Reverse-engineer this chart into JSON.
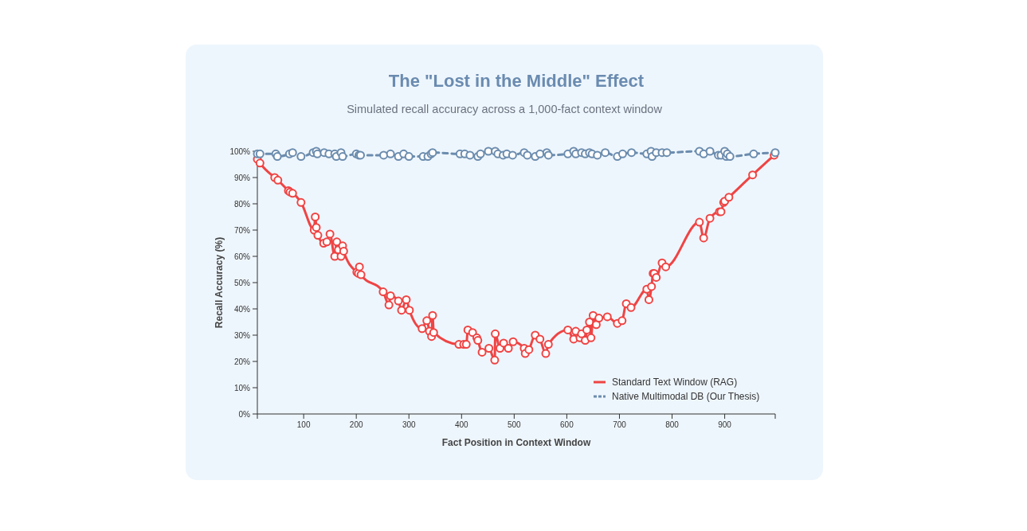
{
  "chart_data": {
    "type": "line",
    "title": "The \"Lost in the Middle\" Effect",
    "subtitle": "Simulated recall accuracy across a 1,000-fact context window",
    "xlabel": "Fact Position in Context Window",
    "ylabel": "Recall Accuracy (%)",
    "xlim": [
      12,
      996
    ],
    "xticks": [
      100,
      200,
      300,
      400,
      500,
      600,
      700,
      800,
      900
    ],
    "ylim": [
      0,
      100
    ],
    "yticks": [
      {
        "value": 0,
        "label": "0%"
      },
      {
        "value": 10,
        "label": "10%"
      },
      {
        "value": 20,
        "label": "20%"
      },
      {
        "value": 30,
        "label": "30%"
      },
      {
        "value": 40,
        "label": "40%"
      },
      {
        "value": 50,
        "label": "50%"
      },
      {
        "value": 60,
        "label": "60%"
      },
      {
        "value": 70,
        "label": "70%"
      },
      {
        "value": 80,
        "label": "80%"
      },
      {
        "value": 90,
        "label": "90%"
      },
      {
        "value": 100,
        "label": "100%"
      }
    ],
    "grid": false,
    "legend": "bottom right",
    "marker": "circle",
    "series": [
      {
        "name": "Standard Text Window (RAG)",
        "color": "#ef4444",
        "line_style": "solid",
        "x": [
          12,
          17,
          45,
          51,
          71,
          74,
          79,
          95,
          120,
          122,
          124,
          127,
          138,
          144,
          150,
          159,
          163,
          166,
          171,
          174,
          176,
          201,
          204,
          206,
          209,
          251,
          262,
          265,
          280,
          286,
          295,
          301,
          325,
          334,
          339,
          343,
          345,
          347,
          395,
          404,
          409,
          412,
          421,
          429,
          431,
          439,
          452,
          463,
          464,
          473,
          480,
          489,
          498,
          519,
          521,
          528,
          540,
          549,
          560,
          565,
          602,
          613,
          617,
          625,
          628,
          635,
          638,
          643,
          646,
          650,
          656,
          661,
          677,
          696,
          705,
          713,
          722,
          752,
          756,
          761,
          764,
          766,
          770,
          781,
          788,
          852,
          860,
          872,
          890,
          893,
          898,
          900,
          908,
          953,
          994
        ],
        "values": [
          97,
          95.5,
          90,
          89,
          85,
          84.5,
          84,
          80.5,
          70,
          75,
          71,
          68,
          65,
          65.5,
          68.5,
          60,
          65.5,
          62.5,
          60,
          64,
          62,
          54,
          53.5,
          56,
          53,
          46.5,
          41.5,
          45,
          43,
          39.5,
          43.5,
          39.5,
          32.5,
          35.5,
          31.5,
          29.5,
          37.5,
          31,
          26.5,
          26.5,
          26.5,
          32,
          31,
          29,
          28,
          23.5,
          25,
          20.5,
          30.5,
          25,
          27,
          25,
          27.5,
          25,
          23,
          24.5,
          30,
          28.5,
          23,
          26.5,
          32,
          28.5,
          31.5,
          29,
          30.5,
          28,
          32,
          35,
          29,
          37.5,
          34,
          36.5,
          37,
          34.5,
          35.5,
          42,
          40.5,
          47.5,
          43.5,
          48.5,
          53.5,
          53.5,
          52,
          57.5,
          56,
          73,
          67,
          74.5,
          77,
          77,
          80.5,
          81,
          82.5,
          91,
          98.5
        ]
      },
      {
        "name": "Native Multimodal DB (Our Thesis)",
        "color": "#6b8cae",
        "line_style": "dashed",
        "x": [
          12,
          17,
          47,
          50,
          73,
          79,
          95,
          118,
          124,
          126,
          139,
          148,
          159,
          162,
          171,
          174,
          200,
          205,
          208,
          252,
          265,
          280,
          290,
          300,
          327,
          336,
          342,
          345,
          397,
          406,
          416,
          431,
          436,
          451,
          464,
          469,
          479,
          486,
          497,
          519,
          525,
          540,
          549,
          562,
          565,
          602,
          613,
          617,
          628,
          635,
          643,
          648,
          658,
          673,
          696,
          706,
          723,
          752,
          760,
          762,
          770,
          781,
          790,
          852,
          860,
          872,
          888,
          893,
          900,
          903,
          905,
          910,
          955,
          996
        ],
        "values": [
          99,
          99,
          99,
          98,
          99,
          99.5,
          98,
          99.5,
          100,
          99,
          99.5,
          99,
          99,
          98,
          99.5,
          98,
          99,
          98.5,
          98.5,
          98.5,
          99,
          98,
          99,
          98,
          98,
          98,
          99,
          99.5,
          99,
          99,
          98.5,
          98,
          99,
          100,
          100,
          99,
          98.5,
          99,
          98.5,
          99.5,
          98.5,
          98,
          99,
          99.5,
          98.5,
          99,
          100,
          99,
          99.5,
          99,
          99.5,
          99,
          98.5,
          99.5,
          98,
          99,
          99.5,
          99,
          100,
          98,
          99.5,
          99.5,
          99.5,
          100,
          99,
          100,
          98.5,
          98.5,
          100,
          98,
          99,
          98,
          99,
          99.5
        ]
      }
    ]
  }
}
